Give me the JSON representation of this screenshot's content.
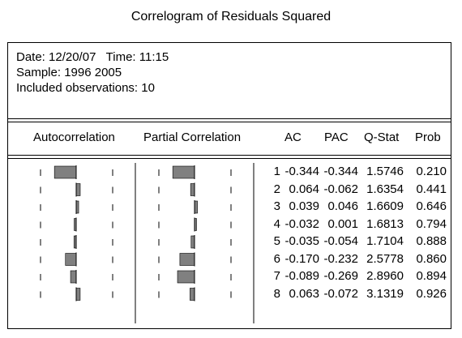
{
  "title": "Correlogram of Residuals Squared",
  "info": {
    "date_line": "Date: 12/20/07   Time: 11:15",
    "sample_line": "Sample: 1996 2005",
    "obs_line": "Included observations: 10"
  },
  "headers": {
    "autocorrelation": "Autocorrelation",
    "partial": "Partial Correlation",
    "ac": "AC",
    "pac": "PAC",
    "qstat": "Q-Stat",
    "prob": "Prob"
  },
  "rows": [
    {
      "lag": "1",
      "ac": "-0.344",
      "pac": "-0.344",
      "q": "1.5746",
      "prob": "0.210",
      "ac_v": -0.344,
      "pac_v": -0.344
    },
    {
      "lag": "2",
      "ac": "0.064",
      "pac": "-0.062",
      "q": "1.6354",
      "prob": "0.441",
      "ac_v": 0.064,
      "pac_v": -0.062
    },
    {
      "lag": "3",
      "ac": "0.039",
      "pac": "0.046",
      "q": "1.6609",
      "prob": "0.646",
      "ac_v": 0.039,
      "pac_v": 0.046
    },
    {
      "lag": "4",
      "ac": "-0.032",
      "pac": "0.001",
      "q": "1.6813",
      "prob": "0.794",
      "ac_v": -0.032,
      "pac_v": 0.001
    },
    {
      "lag": "5",
      "ac": "-0.035",
      "pac": "-0.054",
      "q": "1.7104",
      "prob": "0.888",
      "ac_v": -0.035,
      "pac_v": -0.054
    },
    {
      "lag": "6",
      "ac": "-0.170",
      "pac": "-0.232",
      "q": "2.5778",
      "prob": "0.860",
      "ac_v": -0.17,
      "pac_v": -0.232
    },
    {
      "lag": "7",
      "ac": "-0.089",
      "pac": "-0.269",
      "q": "2.8960",
      "prob": "0.894",
      "ac_v": -0.089,
      "pac_v": -0.269
    },
    {
      "lag": "8",
      "ac": "0.063",
      "pac": "-0.072",
      "q": "3.1319",
      "prob": "0.926",
      "ac_v": 0.063,
      "pac_v": -0.072
    }
  ],
  "colors": {
    "bar": "#808080",
    "line": "#000000"
  }
}
